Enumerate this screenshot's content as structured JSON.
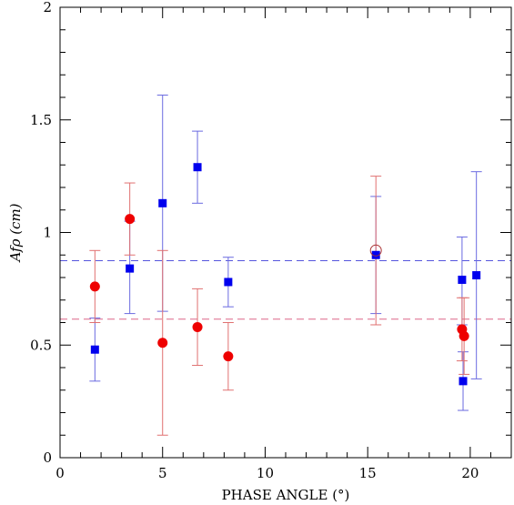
{
  "chart_data": {
    "type": "scatter",
    "xlabel": "PHASE ANGLE (°)",
    "ylabel": "Afρ  (cm)",
    "xlim": [
      0,
      22
    ],
    "ylim": [
      0,
      2
    ],
    "x_ticks": [
      {
        "value": 0,
        "label": "0"
      },
      {
        "value": 5,
        "label": "5"
      },
      {
        "value": 10,
        "label": "10"
      },
      {
        "value": 15,
        "label": "15"
      },
      {
        "value": 20,
        "label": "20"
      }
    ],
    "y_ticks": [
      {
        "value": 0,
        "label": "0"
      },
      {
        "value": 0.5,
        "label": "0.5"
      },
      {
        "value": 1,
        "label": "1"
      },
      {
        "value": 1.5,
        "label": "1.5"
      },
      {
        "value": 2,
        "label": "2"
      }
    ],
    "grid": false,
    "series": [
      {
        "marker": "square",
        "color": "#0000ee",
        "errorbar_color": "#6a6ae0",
        "points": [
          {
            "x": 1.7,
            "y": 0.48,
            "lo": 0.34,
            "hi": 0.62
          },
          {
            "x": 3.4,
            "y": 0.84,
            "lo": 0.64,
            "hi": 1.05
          },
          {
            "x": 5.0,
            "y": 1.13,
            "lo": 0.65,
            "hi": 1.61
          },
          {
            "x": 6.7,
            "y": 1.29,
            "lo": 1.13,
            "hi": 1.45
          },
          {
            "x": 8.2,
            "y": 0.78,
            "lo": 0.67,
            "hi": 0.89
          },
          {
            "x": 15.4,
            "y": 0.9,
            "lo": 0.64,
            "hi": 1.16
          },
          {
            "x": 19.6,
            "y": 0.79,
            "lo": 0.59,
            "hi": 0.98
          },
          {
            "x": 19.65,
            "y": 0.34,
            "lo": 0.21,
            "hi": 0.47
          },
          {
            "x": 20.3,
            "y": 0.81,
            "lo": 0.35,
            "hi": 1.27
          }
        ]
      },
      {
        "marker": "circle",
        "color": "#ee0000",
        "errorbar_color": "#e07070",
        "points": [
          {
            "x": 1.7,
            "y": 0.76,
            "lo": 0.6,
            "hi": 0.92
          },
          {
            "x": 3.4,
            "y": 1.06,
            "lo": 0.9,
            "hi": 1.22
          },
          {
            "x": 5.0,
            "y": 0.51,
            "lo": 0.1,
            "hi": 0.92
          },
          {
            "x": 6.7,
            "y": 0.58,
            "lo": 0.41,
            "hi": 0.75
          },
          {
            "x": 8.2,
            "y": 0.45,
            "lo": 0.3,
            "hi": 0.6
          },
          {
            "x": 15.4,
            "y": 0.92,
            "lo": 0.59,
            "hi": 1.25,
            "open": true
          },
          {
            "x": 19.6,
            "y": 0.57,
            "lo": 0.43,
            "hi": 0.71
          },
          {
            "x": 19.7,
            "y": 0.54,
            "lo": 0.37,
            "hi": 0.71
          }
        ]
      }
    ],
    "reference_lines": [
      {
        "y": 0.875,
        "color": "#5555dd",
        "style": "dashed"
      },
      {
        "y": 0.615,
        "color": "#dd6688",
        "style": "dashed"
      }
    ]
  }
}
